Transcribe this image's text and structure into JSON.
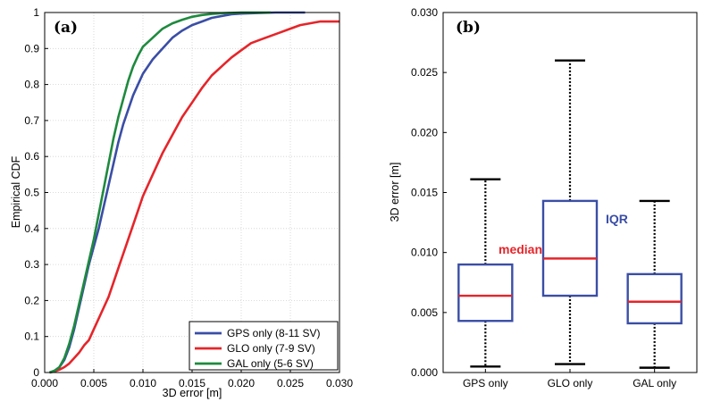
{
  "chart_data": [
    {
      "type": "line",
      "panel_label": "(a)",
      "xlabel": "3D error [m]",
      "ylabel": "Empirical CDF",
      "xlim": [
        0,
        0.03
      ],
      "ylim": [
        0,
        1
      ],
      "x_ticks": [
        "0.000",
        "0.005",
        "0.010",
        "0.015",
        "0.020",
        "0.025",
        "0.030"
      ],
      "y_ticks": [
        "0",
        "0.1",
        "0.2",
        "0.3",
        "0.4",
        "0.5",
        "0.6",
        "0.7",
        "0.8",
        "0.9",
        "1"
      ],
      "grid": true,
      "legend_position": "bottom-right",
      "series": [
        {
          "name": "GPS only (8-11 SV)",
          "color": "#3a4ea6",
          "x": [
            0.0005,
            0.001,
            0.0015,
            0.002,
            0.0025,
            0.003,
            0.0035,
            0.004,
            0.0045,
            0.005,
            0.0055,
            0.006,
            0.0065,
            0.007,
            0.0075,
            0.008,
            0.0085,
            0.009,
            0.0095,
            0.01,
            0.011,
            0.012,
            0.013,
            0.014,
            0.015,
            0.016,
            0.017,
            0.018,
            0.019,
            0.02,
            0.021,
            0.022,
            0.0235,
            0.025,
            0.0265
          ],
          "y": [
            0.0,
            0.005,
            0.015,
            0.035,
            0.07,
            0.12,
            0.18,
            0.24,
            0.3,
            0.35,
            0.4,
            0.46,
            0.52,
            0.58,
            0.64,
            0.69,
            0.73,
            0.77,
            0.8,
            0.83,
            0.87,
            0.9,
            0.93,
            0.95,
            0.965,
            0.975,
            0.985,
            0.99,
            0.995,
            0.997,
            0.998,
            0.999,
            1.0,
            1.0,
            1.0
          ]
        },
        {
          "name": "GLO only (7-9 SV)",
          "color": "#e5252a",
          "x": [
            0.0005,
            0.001,
            0.0015,
            0.002,
            0.0025,
            0.003,
            0.0035,
            0.004,
            0.0045,
            0.005,
            0.0055,
            0.006,
            0.0065,
            0.007,
            0.0075,
            0.008,
            0.0085,
            0.009,
            0.0095,
            0.01,
            0.011,
            0.012,
            0.013,
            0.014,
            0.015,
            0.016,
            0.017,
            0.018,
            0.019,
            0.02,
            0.021,
            0.022,
            0.023,
            0.024,
            0.025,
            0.026,
            0.027,
            0.028,
            0.029,
            0.03
          ],
          "y": [
            0.0,
            0.003,
            0.008,
            0.015,
            0.025,
            0.04,
            0.055,
            0.075,
            0.09,
            0.12,
            0.15,
            0.18,
            0.21,
            0.25,
            0.29,
            0.33,
            0.37,
            0.41,
            0.45,
            0.49,
            0.55,
            0.61,
            0.66,
            0.71,
            0.75,
            0.79,
            0.825,
            0.85,
            0.875,
            0.895,
            0.915,
            0.925,
            0.935,
            0.945,
            0.955,
            0.965,
            0.97,
            0.975,
            0.975,
            0.975
          ]
        },
        {
          "name": "GAL only (5-6 SV)",
          "color": "#1e8a3e",
          "x": [
            0.0005,
            0.001,
            0.0015,
            0.002,
            0.0025,
            0.003,
            0.0035,
            0.004,
            0.0045,
            0.005,
            0.0055,
            0.006,
            0.0065,
            0.007,
            0.0075,
            0.008,
            0.0085,
            0.009,
            0.0095,
            0.01,
            0.011,
            0.012,
            0.013,
            0.014,
            0.015,
            0.016,
            0.017,
            0.018,
            0.019,
            0.02,
            0.021,
            0.022,
            0.023
          ],
          "y": [
            0.0,
            0.005,
            0.015,
            0.04,
            0.08,
            0.13,
            0.19,
            0.25,
            0.31,
            0.37,
            0.44,
            0.51,
            0.58,
            0.65,
            0.71,
            0.76,
            0.81,
            0.85,
            0.88,
            0.905,
            0.93,
            0.955,
            0.97,
            0.98,
            0.988,
            0.993,
            0.996,
            0.998,
            0.999,
            1.0,
            1.0,
            1.0,
            1.0
          ]
        }
      ]
    },
    {
      "type": "box",
      "panel_label": "(b)",
      "ylabel": "3D error [m]",
      "ylim": [
        0,
        0.03
      ],
      "y_ticks": [
        "0.000",
        "0.005",
        "0.010",
        "0.015",
        "0.020",
        "0.025",
        "0.030"
      ],
      "categories": [
        "GPS only",
        "GLO only",
        "GAL only"
      ],
      "boxes": [
        {
          "min": 0.0005,
          "q1": 0.0043,
          "median": 0.0064,
          "q3": 0.009,
          "max": 0.0161
        },
        {
          "min": 0.0007,
          "q1": 0.0064,
          "median": 0.0095,
          "q3": 0.0143,
          "max": 0.026
        },
        {
          "min": 0.0004,
          "q1": 0.0041,
          "median": 0.0059,
          "q3": 0.0082,
          "max": 0.0143
        }
      ],
      "box_color": "#3a4ea6",
      "median_color": "#e5252a",
      "annotations": [
        {
          "text": "median",
          "color": "#e5252a"
        },
        {
          "text": "IQR",
          "color": "#3a4ea6"
        }
      ]
    }
  ]
}
